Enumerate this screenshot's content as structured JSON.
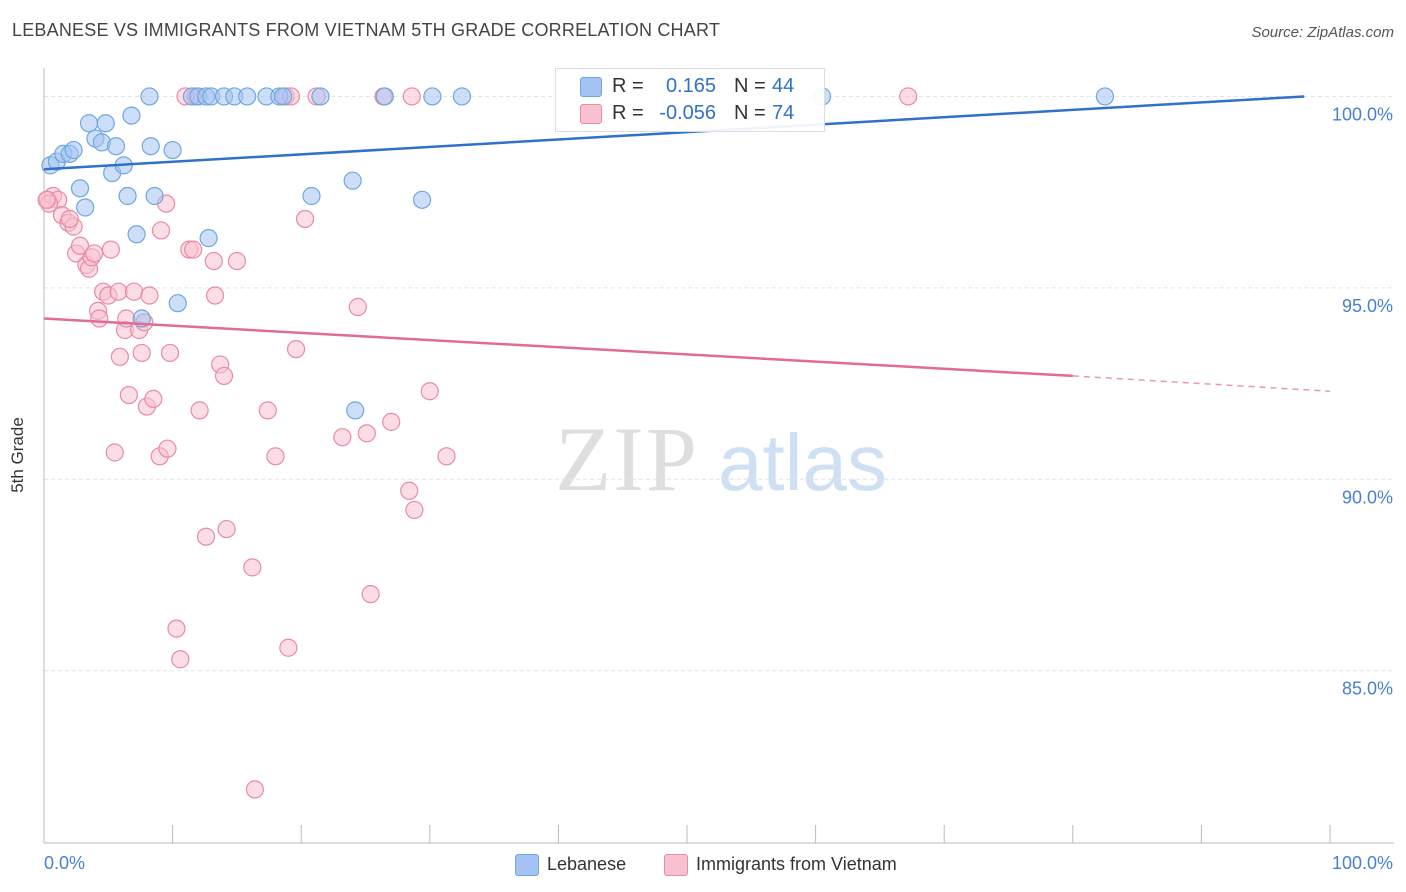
{
  "title": "LEBANESE VS IMMIGRANTS FROM VIETNAM 5TH GRADE CORRELATION CHART",
  "source": "Source: ZipAtlas.com",
  "watermark": {
    "zip": "ZIP",
    "atlas": "atlas"
  },
  "colors": {
    "blue": "#6fa8dc",
    "blue_fill": "#a4c2f4",
    "blue_line": "#2f72c8",
    "pink": "#e88aa8",
    "pink_fill": "#f7c1d0",
    "pink_line": "#e06b95",
    "tick_label": "#4a7fd0",
    "grid": "#e4e4e4"
  },
  "stats": {
    "rows": [
      {
        "r_label": "R =",
        "r_value": "0.165",
        "n_label": "N =",
        "n_value": "44"
      },
      {
        "r_label": "R =",
        "r_value": "-0.056",
        "n_label": "N =",
        "n_value": "74"
      }
    ]
  },
  "legend": {
    "items": [
      {
        "label": "Lebanese"
      },
      {
        "label": "Immigrants from Vietnam"
      }
    ]
  },
  "chart_data": {
    "type": "scatter",
    "title": "LEBANESE VS IMMIGRANTS FROM VIETNAM 5TH GRADE CORRELATION CHART",
    "xlabel": "",
    "ylabel": "5th Grade",
    "xlim": [
      0,
      100
    ],
    "ylim": [
      80.5,
      100.9
    ],
    "x_tick_labels": [
      "0.0%",
      "100.0%"
    ],
    "y_ticks": [
      85,
      90,
      95,
      100
    ],
    "y_tick_labels": [
      "85.0%",
      "90.0%",
      "95.0%",
      "100.0%"
    ],
    "grid": true,
    "legend_position": "bottom",
    "series": [
      {
        "name": "Lebanese",
        "r": 0.165,
        "n": 44,
        "trend": {
          "x": [
            0,
            98
          ],
          "y": [
            98.1,
            100.0
          ]
        },
        "points": [
          [
            0.5,
            98.2
          ],
          [
            1.0,
            98.3
          ],
          [
            1.5,
            98.5
          ],
          [
            2.0,
            98.5
          ],
          [
            2.3,
            98.6
          ],
          [
            2.8,
            97.6
          ],
          [
            3.2,
            97.1
          ],
          [
            3.5,
            99.3
          ],
          [
            4.0,
            98.9
          ],
          [
            4.5,
            98.8
          ],
          [
            4.8,
            99.3
          ],
          [
            5.3,
            98.0
          ],
          [
            5.6,
            98.7
          ],
          [
            6.2,
            98.2
          ],
          [
            6.5,
            97.4
          ],
          [
            6.8,
            99.5
          ],
          [
            7.2,
            96.4
          ],
          [
            8.3,
            98.7
          ],
          [
            8.6,
            97.4
          ],
          [
            8.2,
            100.0
          ],
          [
            10.0,
            98.6
          ],
          [
            10.4,
            94.6
          ],
          [
            11.5,
            100.0
          ],
          [
            12.0,
            100.0
          ],
          [
            12.6,
            100.0
          ],
          [
            13.0,
            100.0
          ],
          [
            12.8,
            96.3
          ],
          [
            14.0,
            100.0
          ],
          [
            14.8,
            100.0
          ],
          [
            15.8,
            100.0
          ],
          [
            17.3,
            100.0
          ],
          [
            18.3,
            100.0
          ],
          [
            18.6,
            100.0
          ],
          [
            21.5,
            100.0
          ],
          [
            20.8,
            97.4
          ],
          [
            24.0,
            97.8
          ],
          [
            24.2,
            91.8
          ],
          [
            26.5,
            100.0
          ],
          [
            29.4,
            97.3
          ],
          [
            30.2,
            100.0
          ],
          [
            32.5,
            100.0
          ],
          [
            7.6,
            94.2
          ],
          [
            60.5,
            100.0
          ],
          [
            82.5,
            100.0
          ]
        ]
      },
      {
        "name": "Immigrants from Vietnam",
        "r": -0.056,
        "n": 74,
        "trend": {
          "x": [
            0,
            80
          ],
          "y": [
            94.2,
            92.7
          ]
        },
        "trend_dashed": {
          "x": [
            80,
            100
          ],
          "y": [
            92.7,
            92.3
          ]
        },
        "points": [
          [
            0.3,
            97.3
          ],
          [
            0.7,
            97.4
          ],
          [
            1.1,
            97.3
          ],
          [
            1.4,
            96.9
          ],
          [
            1.9,
            96.7
          ],
          [
            2.3,
            96.6
          ],
          [
            2.5,
            95.9
          ],
          [
            2.8,
            96.1
          ],
          [
            3.3,
            95.6
          ],
          [
            3.5,
            95.5
          ],
          [
            3.7,
            95.8
          ],
          [
            3.9,
            95.9
          ],
          [
            4.2,
            94.4
          ],
          [
            4.3,
            94.2
          ],
          [
            4.6,
            94.9
          ],
          [
            5.0,
            94.8
          ],
          [
            5.2,
            96.0
          ],
          [
            5.5,
            90.7
          ],
          [
            5.8,
            94.9
          ],
          [
            5.9,
            93.2
          ],
          [
            6.3,
            93.9
          ],
          [
            6.4,
            94.2
          ],
          [
            6.6,
            92.2
          ],
          [
            7.0,
            94.9
          ],
          [
            7.4,
            93.9
          ],
          [
            7.8,
            94.1
          ],
          [
            7.6,
            93.3
          ],
          [
            8.0,
            91.9
          ],
          [
            8.2,
            94.8
          ],
          [
            8.5,
            92.1
          ],
          [
            9.1,
            96.5
          ],
          [
            9.0,
            90.6
          ],
          [
            9.6,
            90.8
          ],
          [
            9.8,
            93.3
          ],
          [
            10.3,
            86.1
          ],
          [
            10.6,
            85.3
          ],
          [
            11.0,
            100.0
          ],
          [
            11.3,
            96.0
          ],
          [
            11.6,
            96.0
          ],
          [
            11.8,
            100.0
          ],
          [
            12.1,
            91.8
          ],
          [
            12.6,
            88.5
          ],
          [
            13.2,
            95.7
          ],
          [
            13.3,
            94.8
          ],
          [
            13.7,
            93.0
          ],
          [
            14.0,
            92.7
          ],
          [
            14.2,
            88.7
          ],
          [
            15.0,
            95.7
          ],
          [
            16.2,
            87.7
          ],
          [
            16.4,
            81.9
          ],
          [
            17.4,
            91.8
          ],
          [
            18.0,
            90.6
          ],
          [
            18.8,
            100.0
          ],
          [
            19.0,
            85.6
          ],
          [
            19.2,
            100.0
          ],
          [
            19.6,
            93.4
          ],
          [
            20.3,
            96.8
          ],
          [
            21.2,
            100.0
          ],
          [
            23.2,
            91.1
          ],
          [
            24.4,
            94.5
          ],
          [
            25.1,
            91.2
          ],
          [
            25.4,
            87.0
          ],
          [
            26.4,
            100.0
          ],
          [
            27.0,
            91.5
          ],
          [
            28.6,
            100.0
          ],
          [
            28.4,
            89.7
          ],
          [
            28.8,
            89.2
          ],
          [
            30.0,
            92.3
          ],
          [
            31.3,
            90.6
          ],
          [
            67.2,
            100.0
          ],
          [
            9.5,
            97.2
          ],
          [
            2.0,
            96.8
          ],
          [
            0.4,
            97.2
          ],
          [
            0.2,
            97.3
          ]
        ]
      }
    ]
  }
}
